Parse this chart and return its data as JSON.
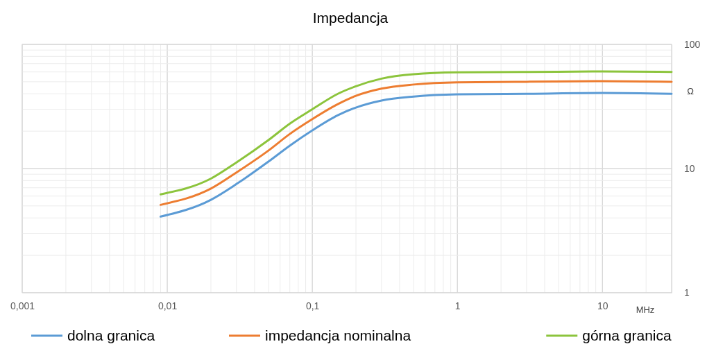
{
  "chart_data": {
    "type": "line",
    "title": "Impedancja",
    "xlabel": "MHz",
    "ylabel": "Ω",
    "log": "xy",
    "grid": true,
    "legend": "bottom",
    "line_style": "solid",
    "marker": "none",
    "xlim": [
      0.001,
      30
    ],
    "xticks": [
      {
        "value": 0.001,
        "label": "0,001"
      },
      {
        "value": 0.01,
        "label": "0,01"
      },
      {
        "value": 0.1,
        "label": "0,1"
      },
      1,
      10
    ],
    "ylim": [
      1,
      100
    ],
    "yticks": [
      1,
      10,
      100
    ],
    "x": [
      0.009,
      0.02,
      0.03,
      0.05,
      0.07,
      0.1,
      0.15,
      0.2,
      0.3,
      0.5,
      1,
      3,
      10,
      30
    ],
    "series": [
      {
        "name": "dolna granica",
        "color": "#5b9bd5",
        "values": [
          4.1,
          5.6,
          7.5,
          11.4,
          15.3,
          20.3,
          26.9,
          31,
          35.3,
          38,
          39.6,
          40,
          40.6,
          40
        ]
      },
      {
        "name": "impedancja nominalna",
        "color": "#ed7d31",
        "values": [
          5.1,
          6.9,
          9.3,
          14,
          19,
          25,
          33,
          38.5,
          44,
          47.5,
          49.5,
          50,
          50.5,
          50
        ]
      },
      {
        "name": "górna granica",
        "color": "#8cc43c",
        "values": [
          6.2,
          8.3,
          11.2,
          17,
          23,
          30,
          40,
          46,
          53,
          57.5,
          59.5,
          60,
          60.5,
          60
        ]
      }
    ]
  }
}
